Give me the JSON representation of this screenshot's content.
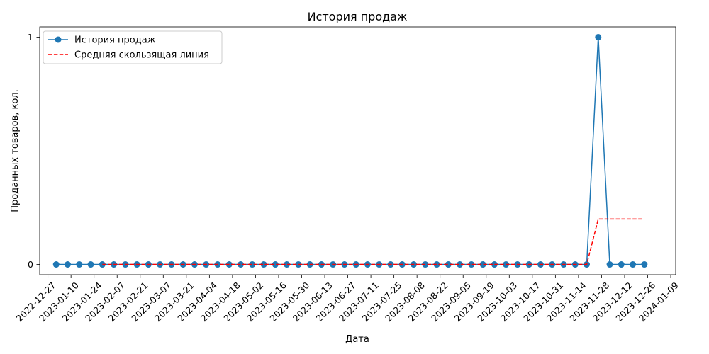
{
  "chart_data": {
    "type": "line",
    "title": "История продаж",
    "xlabel": "Дата",
    "ylabel": "Проданных товаров, кол.",
    "x_ticks": [
      "2022-12-27",
      "2023-01-10",
      "2023-01-24",
      "2023-02-07",
      "2023-02-21",
      "2023-03-07",
      "2023-03-21",
      "2023-04-04",
      "2023-04-18",
      "2023-05-02",
      "2023-05-16",
      "2023-05-30",
      "2023-06-13",
      "2023-06-27",
      "2023-07-11",
      "2023-07-25",
      "2023-08-08",
      "2023-08-22",
      "2023-09-05",
      "2023-09-19",
      "2023-10-03",
      "2023-10-17",
      "2023-10-31",
      "2023-11-14",
      "2023-11-28",
      "2023-12-12",
      "2023-12-26",
      "2024-01-09"
    ],
    "y_ticks": [
      "0",
      "1"
    ],
    "xlim": [
      "2022-12-22",
      "2024-01-12"
    ],
    "ylim": [
      -0.045,
      1.045
    ],
    "grid": false,
    "legend_position": "top-left",
    "series": [
      {
        "name": "История продаж",
        "color": "#1f77b4",
        "style": "solid-with-circle-markers",
        "points": [
          [
            "2023-01-01",
            0
          ],
          [
            "2023-01-08",
            0
          ],
          [
            "2023-01-15",
            0
          ],
          [
            "2023-01-22",
            0
          ],
          [
            "2023-01-29",
            0
          ],
          [
            "2023-02-05",
            0
          ],
          [
            "2023-02-12",
            0
          ],
          [
            "2023-02-19",
            0
          ],
          [
            "2023-02-26",
            0
          ],
          [
            "2023-03-05",
            0
          ],
          [
            "2023-03-12",
            0
          ],
          [
            "2023-03-19",
            0
          ],
          [
            "2023-03-26",
            0
          ],
          [
            "2023-04-02",
            0
          ],
          [
            "2023-04-09",
            0
          ],
          [
            "2023-04-16",
            0
          ],
          [
            "2023-04-23",
            0
          ],
          [
            "2023-04-30",
            0
          ],
          [
            "2023-05-07",
            0
          ],
          [
            "2023-05-14",
            0
          ],
          [
            "2023-05-21",
            0
          ],
          [
            "2023-05-28",
            0
          ],
          [
            "2023-06-04",
            0
          ],
          [
            "2023-06-11",
            0
          ],
          [
            "2023-06-18",
            0
          ],
          [
            "2023-06-25",
            0
          ],
          [
            "2023-07-02",
            0
          ],
          [
            "2023-07-09",
            0
          ],
          [
            "2023-07-16",
            0
          ],
          [
            "2023-07-23",
            0
          ],
          [
            "2023-07-30",
            0
          ],
          [
            "2023-08-06",
            0
          ],
          [
            "2023-08-13",
            0
          ],
          [
            "2023-08-20",
            0
          ],
          [
            "2023-08-27",
            0
          ],
          [
            "2023-09-03",
            0
          ],
          [
            "2023-09-10",
            0
          ],
          [
            "2023-09-17",
            0
          ],
          [
            "2023-09-24",
            0
          ],
          [
            "2023-10-01",
            0
          ],
          [
            "2023-10-08",
            0
          ],
          [
            "2023-10-15",
            0
          ],
          [
            "2023-10-22",
            0
          ],
          [
            "2023-10-29",
            0
          ],
          [
            "2023-11-05",
            0
          ],
          [
            "2023-11-12",
            0
          ],
          [
            "2023-11-19",
            0
          ],
          [
            "2023-11-26",
            1
          ],
          [
            "2023-12-03",
            0
          ],
          [
            "2023-12-10",
            0
          ],
          [
            "2023-12-17",
            0
          ],
          [
            "2023-12-24",
            0
          ]
        ]
      },
      {
        "name": "Средняя скользящая линия",
        "color": "#ff0000",
        "style": "dashed",
        "points": [
          [
            "2023-01-29",
            0
          ],
          [
            "2023-11-19",
            0
          ],
          [
            "2023-11-26",
            0.2
          ],
          [
            "2023-12-24",
            0.2
          ]
        ]
      }
    ]
  }
}
